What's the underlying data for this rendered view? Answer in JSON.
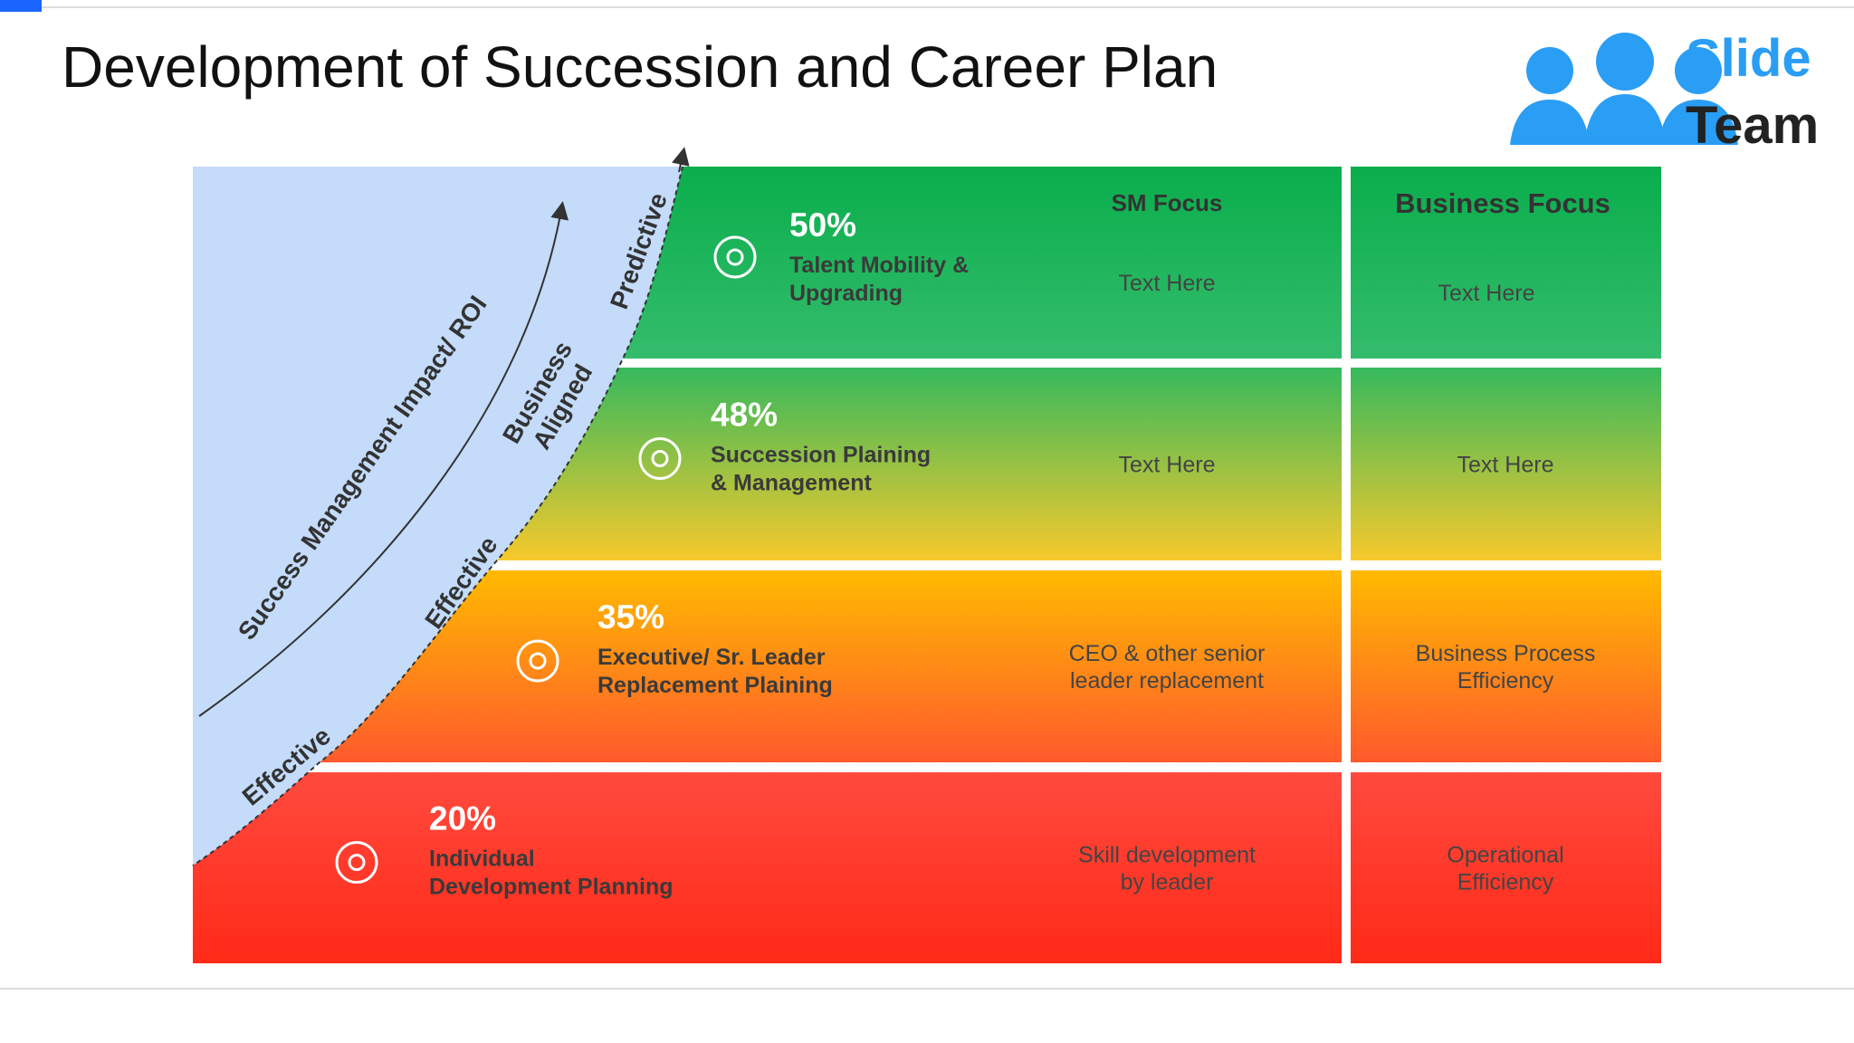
{
  "header": {
    "title": "Development of Succession and Career Plan",
    "logo": [
      "Slide",
      "Team"
    ]
  },
  "diagram": {
    "axis_label": "Success Management Impact/ ROI",
    "stages": [
      [
        "Predictive"
      ],
      [
        "Business",
        "Aligned"
      ],
      [
        "Effective"
      ],
      [
        "Effective"
      ]
    ],
    "columns": {
      "sm": "SM Focus",
      "business": "Business Focus"
    },
    "rows": [
      {
        "percent": "50%",
        "label": [
          "Talent Mobility &",
          "Upgrading"
        ],
        "sm": [
          "Text Here"
        ],
        "business": [
          "Text Here"
        ]
      },
      {
        "percent": "48%",
        "label": [
          "Succession Plaining",
          "& Management"
        ],
        "sm": [
          "Text Here"
        ],
        "business": [
          "Text Here"
        ]
      },
      {
        "percent": "35%",
        "label": [
          "Executive/ Sr. Leader",
          "Replacement Plaining"
        ],
        "sm": [
          "CEO & other senior",
          "leader replacement"
        ],
        "business": [
          "Business Process",
          "Efficiency"
        ]
      },
      {
        "percent": "20%",
        "label": [
          "Individual",
          "Development Planning"
        ],
        "sm": [
          "Skill development",
          "by leader"
        ],
        "business": [
          "Operational",
          "Efficiency"
        ]
      }
    ]
  }
}
